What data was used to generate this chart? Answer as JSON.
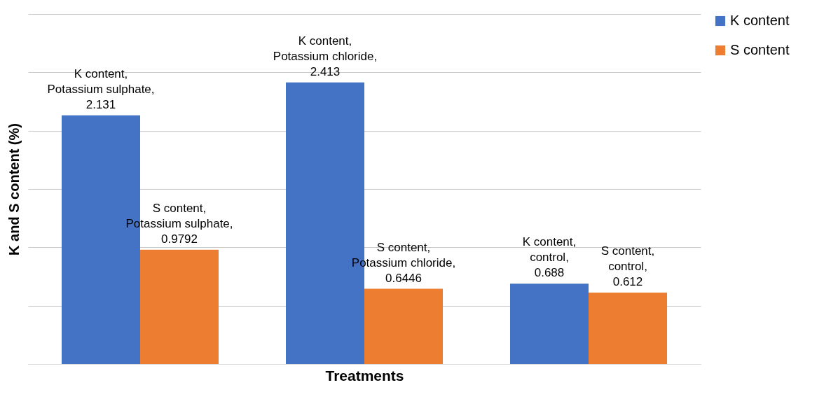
{
  "chart_data": {
    "type": "bar",
    "xlabel": "Treatments",
    "ylabel": "K and S content (%)",
    "categories": [
      null,
      null,
      null
    ],
    "series": [
      {
        "name": "K content",
        "color": "#4472c4",
        "values": [
          2.131,
          2.413,
          0.688
        ],
        "value_labels": [
          "K content, Potassium sulphate, 2.131",
          "K content, Potassium chloride, 2.413",
          "K content, control, 0.688"
        ]
      },
      {
        "name": "S content",
        "color": "#ed7d31",
        "values": [
          0.9792,
          0.6446,
          0.612
        ],
        "value_labels": [
          "S content, Potassium sulphate, 0.9792",
          "S content, Potassium chloride, 0.6446",
          "S content, control, 0.612"
        ]
      }
    ],
    "ylim": [
      0,
      3
    ],
    "yticks": [
      {
        "value": 0,
        "label": null
      },
      {
        "value": 0.5,
        "label": null
      },
      {
        "value": 1,
        "label": null
      },
      {
        "value": 1.5,
        "label": null
      },
      {
        "value": 2,
        "label": null
      },
      {
        "value": 2.5,
        "label": null
      },
      {
        "value": 3,
        "label": null
      }
    ],
    "grid": "y",
    "legend": "right"
  }
}
